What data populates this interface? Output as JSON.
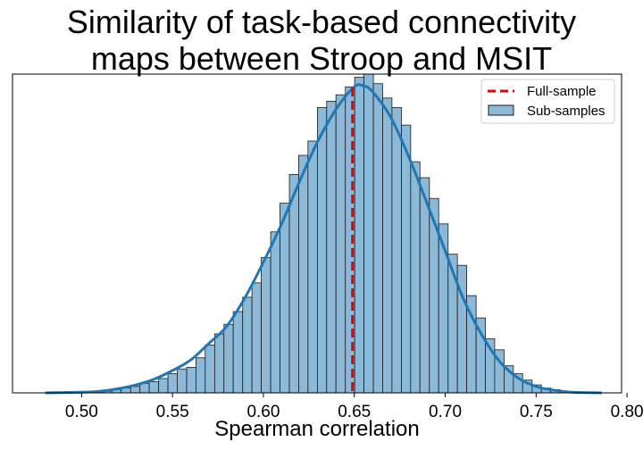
{
  "chart_data": {
    "type": "histogram",
    "title_lines": [
      "Similarity of task-based connectivity",
      "maps between Stroop and MSIT"
    ],
    "xlabel": "Spearman correlation",
    "ylabel": "",
    "xlim": [
      0.462,
      0.797
    ],
    "ylim": [
      0,
      100
    ],
    "x_ticks": [
      0.5,
      0.55,
      0.6,
      0.65,
      0.7,
      0.75,
      0.8
    ],
    "x_tick_labels": [
      "0.50",
      "0.55",
      "0.60",
      "0.65",
      "0.70",
      "0.75",
      "0.80"
    ],
    "y_ticks_visible": false,
    "grid": false,
    "legend": {
      "position": "top-right",
      "entries": [
        {
          "label": "Full-sample",
          "kind": "dashed-line",
          "color": "#e8000b"
        },
        {
          "label": "Sub-samples",
          "kind": "patch",
          "color": "#8db9d9"
        }
      ]
    },
    "reference_line": {
      "name": "Full-sample",
      "x": 0.649,
      "color": "#e8000b",
      "style": "dashed"
    },
    "histogram": {
      "name": "Sub-samples",
      "color": "#8db9d9",
      "edgecolor": "#1a1a1a",
      "bin_edges": [
        0.5115,
        0.5167,
        0.5218,
        0.527,
        0.5321,
        0.5372,
        0.5424,
        0.5475,
        0.5526,
        0.5578,
        0.5629,
        0.568,
        0.5732,
        0.5783,
        0.5834,
        0.5886,
        0.5937,
        0.5988,
        0.604,
        0.6091,
        0.6143,
        0.6194,
        0.6245,
        0.6297,
        0.6348,
        0.6399,
        0.6451,
        0.6502,
        0.6553,
        0.6605,
        0.6656,
        0.6707,
        0.6759,
        0.681,
        0.6861,
        0.6913,
        0.6964,
        0.7016,
        0.7067,
        0.7118,
        0.717,
        0.7221,
        0.7272,
        0.7324,
        0.7375,
        0.7426,
        0.7478,
        0.7529,
        0.758,
        0.7632,
        0.7683
      ],
      "counts": [
        0.5,
        1,
        1.5,
        2,
        3,
        3.5,
        4.5,
        6,
        7.5,
        8,
        11,
        15,
        18.5,
        21.5,
        25.5,
        30,
        34.5,
        42.5,
        50.5,
        59.5,
        68.5,
        74.5,
        79,
        89.5,
        91.5,
        93.5,
        96,
        99,
        100,
        97,
        92.5,
        89.5,
        84,
        72.5,
        67.5,
        61,
        53,
        43.5,
        40,
        30.5,
        23.5,
        17,
        13.5,
        8.5,
        6,
        4,
        2.5,
        1.5,
        1,
        0.5
      ]
    },
    "kde": {
      "name": "Sub-samples KDE",
      "color": "#1f77b4",
      "x": [
        0.48,
        0.5,
        0.51,
        0.52,
        0.53,
        0.54,
        0.55,
        0.56,
        0.57,
        0.58,
        0.59,
        0.6,
        0.61,
        0.62,
        0.63,
        0.64,
        0.65,
        0.655,
        0.66,
        0.67,
        0.68,
        0.69,
        0.7,
        0.71,
        0.72,
        0.73,
        0.74,
        0.75,
        0.76,
        0.77,
        0.786
      ],
      "y": [
        0,
        0.2,
        0.5,
        1.3,
        2.5,
        4.3,
        7,
        10.3,
        15.5,
        21,
        30,
        41,
        53,
        66.5,
        79,
        89,
        96,
        96.3,
        94.5,
        86.5,
        74,
        59.5,
        44.5,
        29.5,
        18.3,
        9.8,
        4.7,
        2,
        0.8,
        0.2,
        0
      ]
    }
  }
}
